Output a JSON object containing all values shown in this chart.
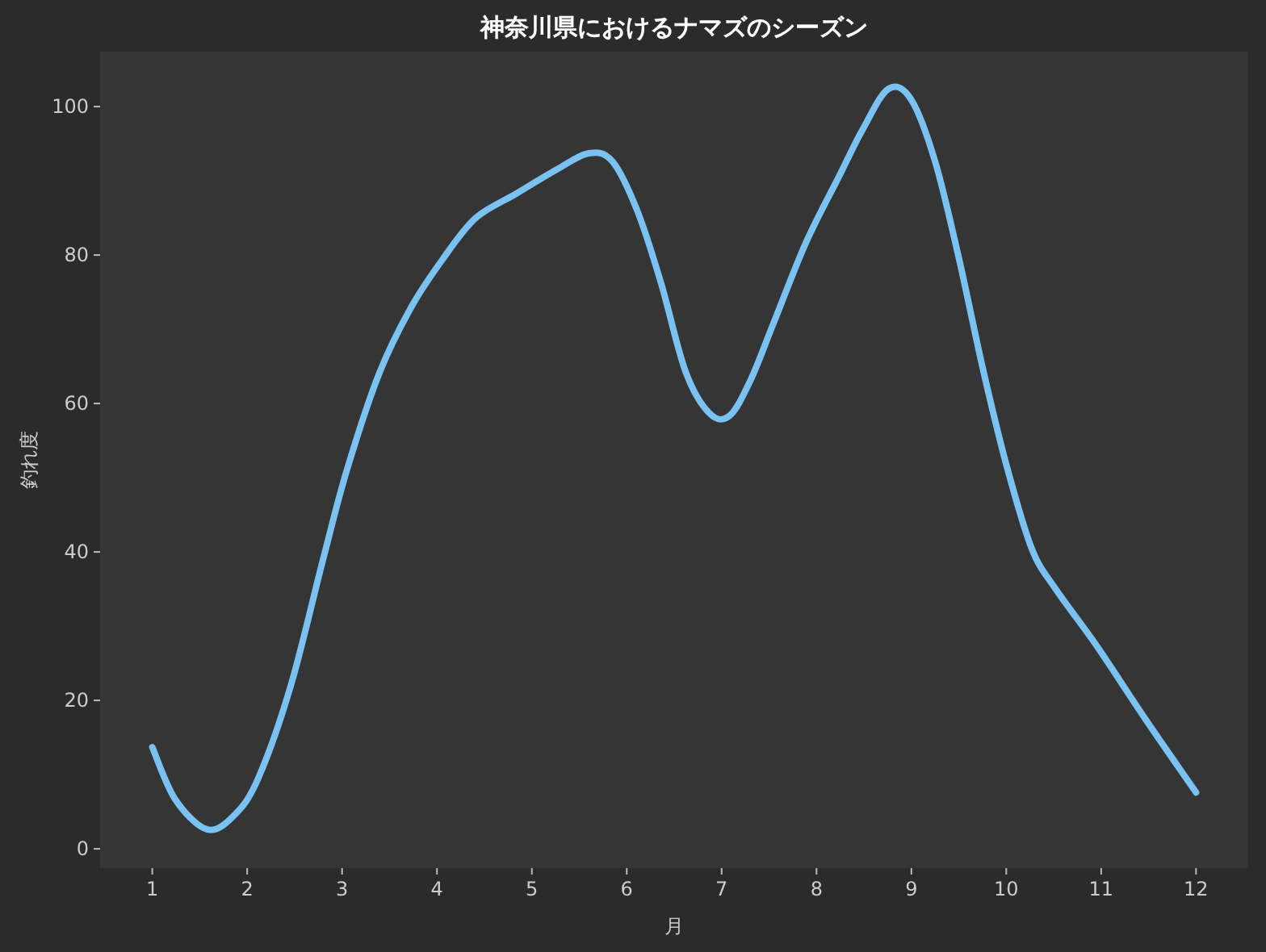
{
  "chart_data": {
    "type": "line",
    "title": "神奈川県におけるナマズのシーズン",
    "xlabel": "月",
    "ylabel": "釣れ度",
    "x": [
      1,
      1.24,
      1.58,
      1.87,
      2.12,
      2.46,
      2.8,
      3.05,
      3.39,
      3.73,
      4.07,
      4.41,
      4.84,
      5.26,
      5.6,
      5.85,
      6.11,
      6.36,
      6.62,
      6.87,
      7.08,
      7.3,
      7.55,
      7.89,
      8.23,
      8.49,
      8.76,
      9.0,
      9.25,
      9.5,
      9.76,
      10.01,
      10.27,
      10.52,
      10.95,
      11.46,
      12
    ],
    "series": [
      {
        "color": "#79c2f2",
        "values": [
          13.7,
          6.7,
          2.6,
          4.6,
          9.6,
          22,
          39,
          51,
          64,
          73,
          79.6,
          85,
          88.3,
          91.5,
          93.7,
          92.6,
          86,
          76.3,
          64.3,
          58.7,
          58.3,
          63,
          70.9,
          81.7,
          90.4,
          97,
          102.4,
          100.9,
          92.6,
          79.6,
          64.3,
          51.3,
          40.4,
          35,
          27.4,
          17.6,
          7.6
        ]
      }
    ],
    "xlim": [
      0.45,
      12.55
    ],
    "ylim": [
      -2.6,
      107.4
    ],
    "xticks": [
      1,
      2,
      3,
      4,
      5,
      6,
      7,
      8,
      9,
      10,
      11,
      12
    ],
    "yticks": [
      0,
      20,
      40,
      60,
      80,
      100
    ],
    "grid": false,
    "marker": "none",
    "line_style": "solid"
  }
}
